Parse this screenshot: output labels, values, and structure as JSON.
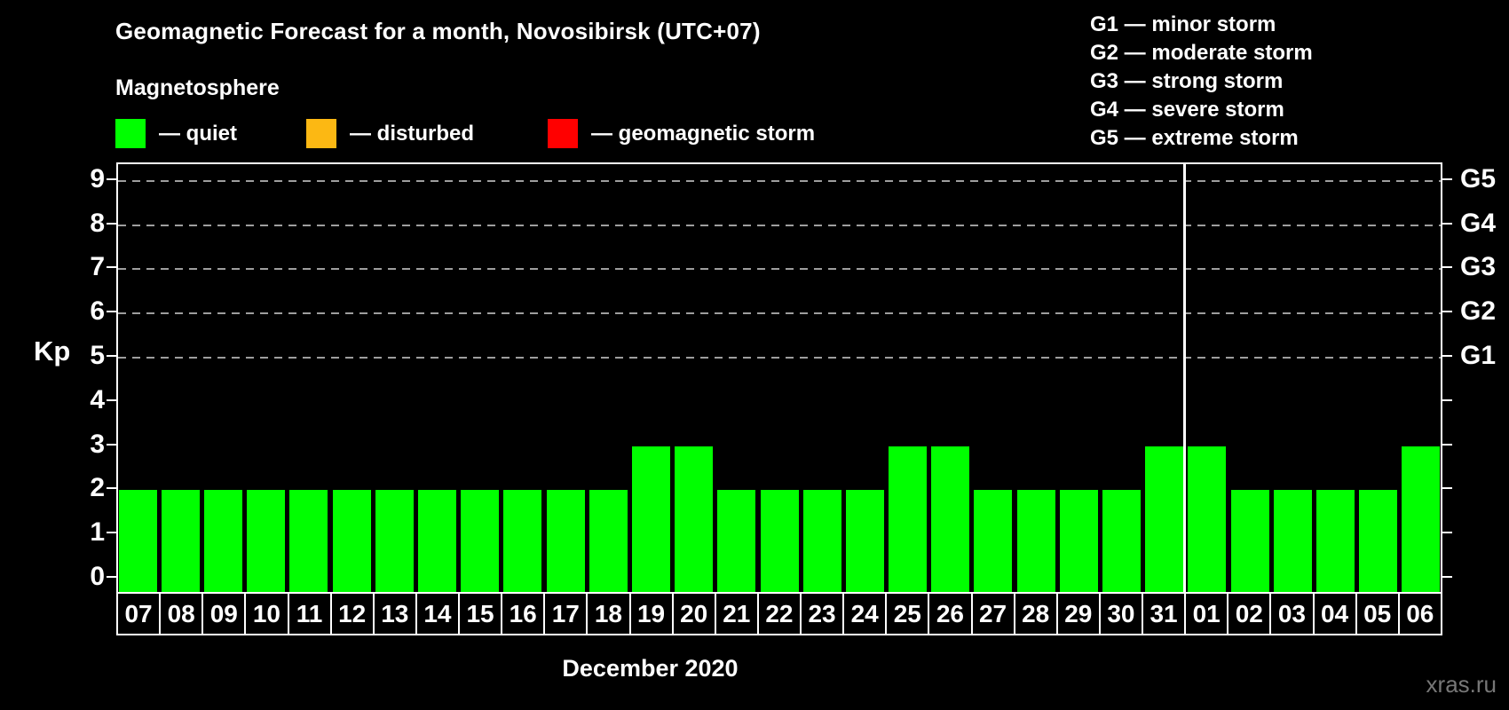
{
  "page": {
    "title": "Geomagnetic Forecast for a month, Novosibirsk (UTC+07)",
    "subtitle": "Magnetosphere",
    "watermark": "xras.ru"
  },
  "legend": {
    "items": [
      {
        "name": "quiet",
        "label": "— quiet",
        "color": "#00ff00"
      },
      {
        "name": "disturbed",
        "label": "— disturbed",
        "color": "#fcb813"
      },
      {
        "name": "geomagnetic-storm",
        "label": "— geomagnetic storm",
        "color": "#ff0000"
      }
    ]
  },
  "g_scale_legend": {
    "lines": [
      "G1 — minor storm",
      "G2 — moderate storm",
      "G3 — strong storm",
      "G4 — severe storm",
      "G5 — extreme storm"
    ]
  },
  "chart_data": {
    "type": "bar",
    "title": "Geomagnetic Forecast for a month, Novosibirsk (UTC+07)",
    "ylabel": "Kp",
    "xlabel": "December 2020",
    "categories": [
      "07",
      "08",
      "09",
      "10",
      "11",
      "12",
      "13",
      "14",
      "15",
      "16",
      "17",
      "18",
      "19",
      "20",
      "21",
      "22",
      "23",
      "24",
      "25",
      "26",
      "27",
      "28",
      "29",
      "30",
      "31",
      "01",
      "02",
      "03",
      "04",
      "05",
      "06"
    ],
    "values": [
      2,
      2,
      2,
      2,
      2,
      2,
      2,
      2,
      2,
      2,
      2,
      2,
      3,
      3,
      2,
      2,
      2,
      2,
      3,
      3,
      2,
      2,
      2,
      2,
      3,
      3,
      2,
      2,
      2,
      2,
      3
    ],
    "bar_color": "#00ff00",
    "ylim": [
      0,
      9
    ],
    "yticks": [
      0,
      1,
      2,
      3,
      4,
      5,
      6,
      7,
      8,
      9
    ],
    "gridlines_at": [
      5,
      6,
      7,
      8,
      9
    ],
    "right_axis_labels": [
      {
        "label": "G1",
        "kp": 5
      },
      {
        "label": "G2",
        "kp": 6
      },
      {
        "label": "G3",
        "kp": 7
      },
      {
        "label": "G4",
        "kp": 8
      },
      {
        "label": "G5",
        "kp": 9
      }
    ],
    "month_boundary_after_index": 24,
    "grid": "dashed",
    "background": "#000000",
    "axis_color": "#ffffff"
  }
}
